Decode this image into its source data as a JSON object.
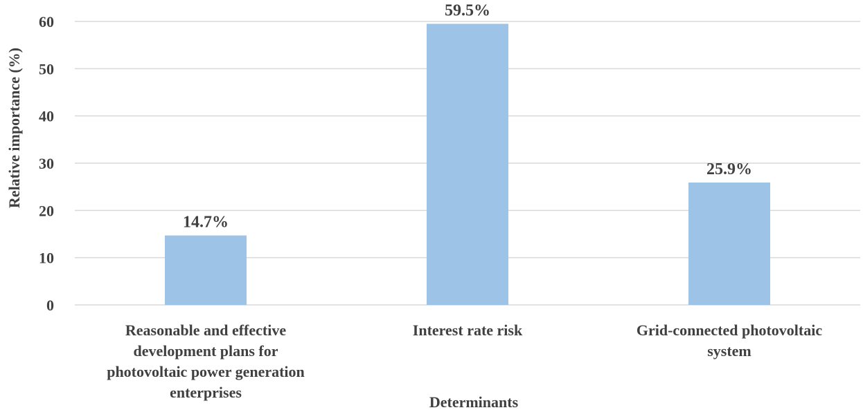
{
  "chart_data": {
    "type": "bar",
    "categories": [
      [
        "Reasonable and effective",
        "development plans for",
        "photovoltaic power generation",
        "enterprises"
      ],
      [
        "Interest rate risk"
      ],
      [
        "Grid-connected photovoltaic",
        "system"
      ]
    ],
    "values": [
      14.7,
      59.5,
      25.9
    ],
    "data_labels": [
      "14.7%",
      "59.5%",
      "25.9%"
    ],
    "title": "",
    "xlabel": "Determinants",
    "ylabel": "Relative importance (%)",
    "ylim": [
      0,
      60
    ],
    "yticks": [
      0,
      10,
      20,
      30,
      40,
      50,
      60
    ],
    "grid": true,
    "legend": "none",
    "bar_color": "#9dc3e6"
  }
}
